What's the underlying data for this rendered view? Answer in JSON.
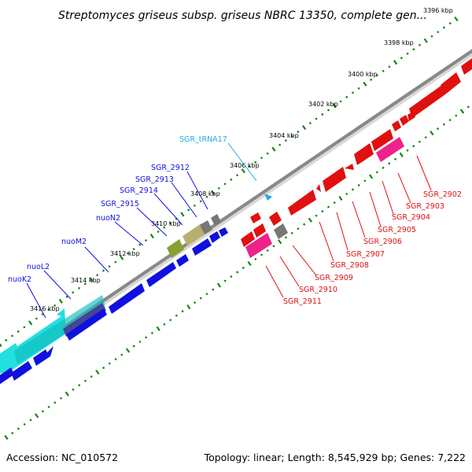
{
  "title": "Streptomyces griseus subsp. griseus NBRC 13350, complete gen...",
  "footer": {
    "accession": "Accession: NC_010572",
    "summary": "Topology: linear; Length: 8,545,929 bp; Genes: 7,222"
  },
  "colors": {
    "forward_strand": "#1010e0",
    "reverse_strand": "#e01010",
    "cyan_gene": "#22e0e0",
    "magenta_gene": "#ee2288",
    "olive_gene": "#88a030",
    "khaki_gene": "#b8b070",
    "gray_gene": "#777777",
    "trna": "#22aadd",
    "tick": "#118811",
    "backbone": "#888888"
  },
  "ticks": [
    "3396 kbp",
    "3398 kbp",
    "3400 kbp",
    "3402 kbp",
    "3404 kbp",
    "3406 kbp",
    "3408 kbp",
    "3410 kbp",
    "3412 kbp",
    "3414 kbp",
    "3416 kbp"
  ],
  "forward_labels": [
    "nuoK2",
    "nuoL2",
    "nuoM2",
    "nuoN2",
    "SGR_2915",
    "SGR_2914",
    "SGR_2913",
    "SGR_2912",
    "SGR_tRNA17"
  ],
  "reverse_labels": [
    "SGR_2902",
    "SGR_2903",
    "SGR_2904",
    "SGR_2905",
    "SGR_2906",
    "SGR_2907",
    "SGR_2908",
    "SGR_2909",
    "SGR_2910",
    "SGR_2911"
  ]
}
